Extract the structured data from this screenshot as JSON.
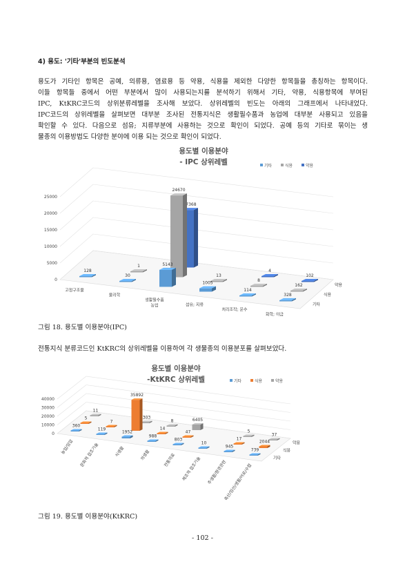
{
  "heading": "4) 용도: '기타'부분의 빈도분석",
  "paragraph_lines": [
    "용도가 기타인 항목은 공예, 의류용, 염료용 등 약용, 식용을 제외한 다양한 항목들을 총칭하는 항목이다.",
    "이들 항목들 중에서 어떤 부분에서 많이 사용되는지를 분석하기 위해서 기타, 약용, 식용항목에 부여된",
    "IPC, KtKRC코드의 상위분류레벨을 조사해 보았다. 상위레벨의 빈도는 아래의 그래프에서 나타내었다.",
    "IPC코드의 상위레벨을 살펴보면 대부분 조사된 전통지식은 생활필수품과 농업에 대부분 사용되고 있음을",
    "확인할 수 있다. 다음으로 섬유; 지류부분에 사용하는 것으로 확인이 되었다. 공예 등의 기타로 묶이는 생",
    "물종의 이용방법도 다양한 분야에 이용 되는 것으로 확인이 되었다."
  ],
  "caption1": "그림 18. 용도별 이용분야(IPC)",
  "text_between": "전통지식 분류코드인 KtKRC의 상위레벨을 이용하여 각 생물종의 이용분포를 살펴보았다.",
  "caption2": "그림 19. 용도별 이용분야(KtKRC)",
  "page_number": "- 102 -",
  "chart_data": [
    {
      "type": "bar",
      "title": "용도별 이용분야",
      "subtitle": "- IPC 상위레벨",
      "categories": [
        "고정구조물",
        "물리학",
        "생활필수품\n농업",
        "섬유; 지류",
        "처리조작; 운수",
        "화학; 야금"
      ],
      "series": [
        {
          "name": "기타",
          "color": "#5B9BD5",
          "values": [
            128,
            30,
            5143,
            1005,
            114,
            328
          ]
        },
        {
          "name": "식용",
          "color": "#A5A5A5",
          "values": [
            null,
            1,
            24670,
            13,
            8,
            162
          ]
        },
        {
          "name": "약용",
          "color": "#4472C4",
          "values": [
            null,
            null,
            17368,
            null,
            4,
            102
          ]
        }
      ],
      "yticks": [
        "0",
        "5000",
        "10000",
        "15000",
        "20000",
        "25000"
      ],
      "ylim": [
        0,
        25000
      ],
      "depth_labels": [
        "약용",
        "식용",
        "기타"
      ],
      "legend": "top-right"
    },
    {
      "type": "bar",
      "title": "용도별 이용분야",
      "subtitle": "-KtKRC 상위레벨",
      "categories": [
        "농업/임업",
        "문화적 접조기술",
        "식생활",
        "의생활",
        "전통의료",
        "제조적 접조기술",
        "주생활/환경관련",
        "축산/임산/생활/어로/수렵"
      ],
      "series": [
        {
          "name": "기타",
          "color": "#5B9BD5",
          "values": [
            360,
            119,
            1952,
            988,
            803,
            10,
            945,
            739
          ]
        },
        {
          "name": "식용",
          "color": "#ED7D31",
          "values": [
            5,
            7,
            35892,
            14,
            47,
            null,
            17,
            2044
          ]
        },
        {
          "name": "약용",
          "color": "#A5A5A5",
          "values": [
            11,
            null,
            303,
            8,
            6405,
            null,
            5,
            37
          ]
        }
      ],
      "yticks": [
        "0",
        "10000",
        "20000",
        "30000",
        "40000"
      ],
      "ylim": [
        0,
        40000
      ],
      "depth_labels": [
        "약용",
        "식용",
        "기타"
      ],
      "legend": "top-right"
    }
  ]
}
